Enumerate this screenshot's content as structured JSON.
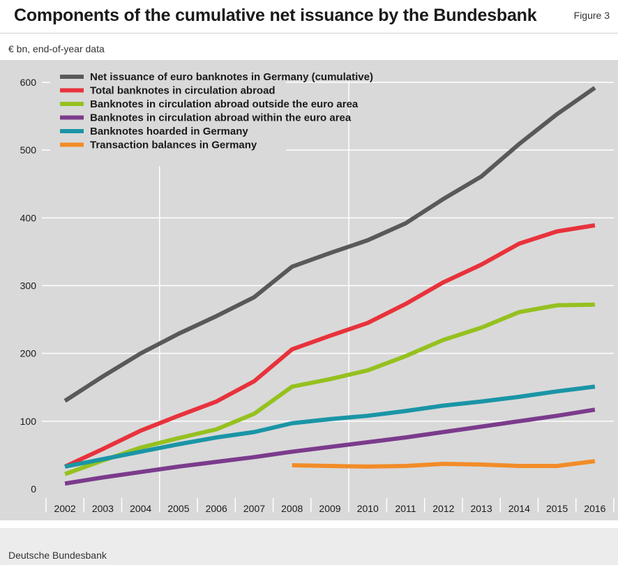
{
  "header": {
    "title": "Components of the cumulative net issuance by the Bundesbank",
    "figure_label": "Figure 3",
    "unit_note": "€ bn, end-of-year data"
  },
  "footer": {
    "source": "Deutsche Bundesbank"
  },
  "colors": {
    "panel_background": "#d9d9d9",
    "grid": "#ffffff"
  },
  "chart_data": {
    "type": "line",
    "title": "Components of the cumulative net issuance by the Bundesbank",
    "xlabel": "",
    "ylabel": "",
    "ylim": [
      0,
      600
    ],
    "y_ticks": [
      0,
      100,
      200,
      300,
      400,
      500,
      600
    ],
    "grid": true,
    "legend_placement": "top-left",
    "x": [
      "2002",
      "2003",
      "2004",
      "2005",
      "2006",
      "2007",
      "2008",
      "2009",
      "2010",
      "2011",
      "2012",
      "2013",
      "2014",
      "2015",
      "2016"
    ],
    "series": [
      {
        "name": "Net issuance of euro banknotes in Germany (cumulative)",
        "color": "#595959",
        "values": [
          130,
          166,
          200,
          229,
          255,
          283,
          328,
          348,
          367,
          392,
          428,
          461,
          509,
          553,
          592
        ]
      },
      {
        "name": "Total banknotes in circulation abroad",
        "color": "#e8323c",
        "values": [
          33,
          59,
          86,
          108,
          129,
          159,
          206,
          226,
          245,
          273,
          305,
          331,
          362,
          380,
          389
        ]
      },
      {
        "name": "Banknotes in circulation abroad outside the euro area",
        "color": "#95c11f",
        "values": [
          22,
          42,
          61,
          75,
          88,
          111,
          151,
          162,
          175,
          196,
          220,
          238,
          261,
          271,
          272
        ]
      },
      {
        "name": "Banknotes in circulation abroad within the euro area",
        "color": "#7b3b8c",
        "values": [
          8,
          17,
          25,
          33,
          40,
          47,
          55,
          62,
          69,
          76,
          84,
          92,
          100,
          108,
          117
        ]
      },
      {
        "name": "Banknotes hoarded in Germany",
        "color": "#1a95a6",
        "values": [
          33,
          44,
          55,
          66,
          76,
          84,
          97,
          103,
          108,
          115,
          123,
          129,
          136,
          144,
          151
        ]
      },
      {
        "name": "Transaction balances in Germany",
        "color": "#f28c28",
        "values": [
          null,
          null,
          null,
          null,
          null,
          null,
          35,
          34,
          33,
          34,
          37,
          36,
          34,
          34,
          41
        ]
      }
    ]
  }
}
